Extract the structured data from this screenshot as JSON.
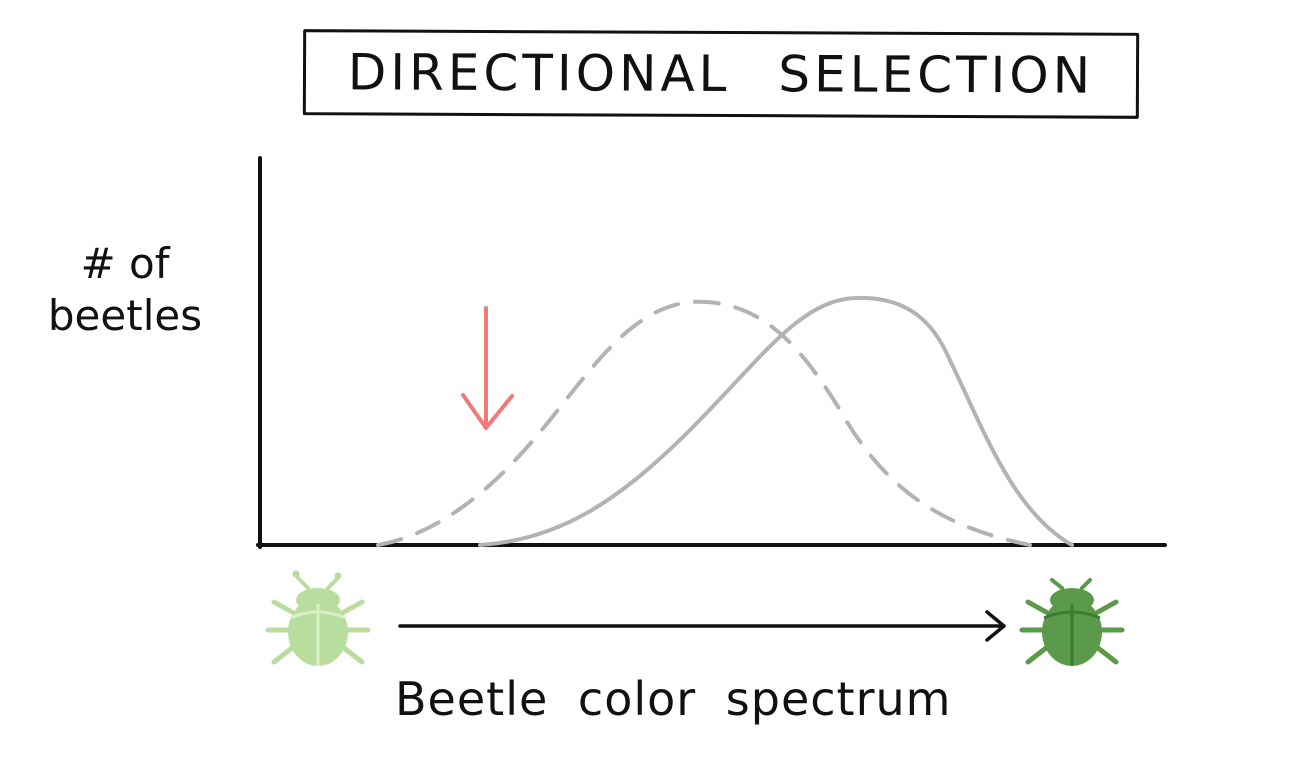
{
  "title": "DIRECTIONAL SELECTION",
  "y_axis_label": [
    "# of",
    "beetles"
  ],
  "x_axis_label": "Beetle color spectrum",
  "colors": {
    "ink": "#111111",
    "curve": "#b3b3b3",
    "selection_arrow": "#f07a7a",
    "light_beetle": "#b9dd9f",
    "light_beetle_detail": "#d9efc8",
    "dark_beetle": "#5a9a4a",
    "dark_beetle_detail": "#3f7a33"
  },
  "curves": [
    {
      "name": "before-selection",
      "style": "dashed"
    },
    {
      "name": "after-selection",
      "style": "solid"
    }
  ],
  "icons": [
    "light-beetle-icon",
    "spectrum-arrow",
    "dark-beetle-icon",
    "selection-arrow"
  ]
}
